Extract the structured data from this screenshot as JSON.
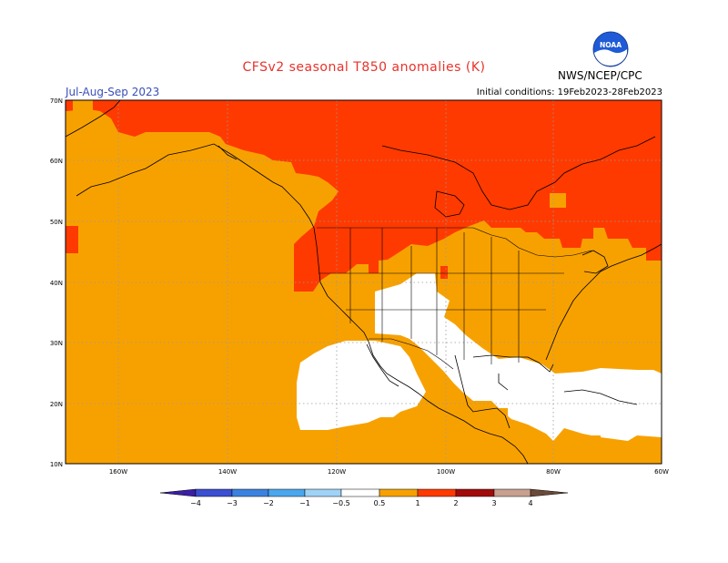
{
  "header": {
    "title": "CFSv2 seasonal T850 anomalies (K)",
    "season": "Jul-Aug-Sep 2023",
    "initial_conditions": "Initial conditions: 19Feb2023-28Feb2023",
    "org": "NWS/NCEP/CPC",
    "logo_text": "NOAA"
  },
  "map": {
    "lat_labels": [
      "70N",
      "60N",
      "50N",
      "40N",
      "30N",
      "20N",
      "10N"
    ],
    "lon_labels": [
      "160W",
      "140W",
      "120W",
      "100W",
      "80W",
      "60W"
    ],
    "colors": {
      "band_05_1": "#f7a100",
      "band_1_2": "#fe3a00",
      "neutral": "#ffffff",
      "coast": "#000000",
      "grid": "#9a9a9a"
    },
    "legend": [
      {
        "label": "−4",
        "color": "#3b1fa6"
      },
      {
        "label": "−3",
        "color": "#3a4fd1"
      },
      {
        "label": "−2",
        "color": "#3b82e0"
      },
      {
        "label": "−1",
        "color": "#4aa6ee"
      },
      {
        "label": "−0.5",
        "color": "#9fd2f7"
      },
      {
        "label": "0.5",
        "color": "#ffffff"
      },
      {
        "label": "1",
        "color": "#f7a100"
      },
      {
        "label": "2",
        "color": "#fe3a00"
      },
      {
        "label": "3",
        "color": "#a20a0a"
      },
      {
        "label": "4",
        "color": "#c8a090"
      },
      {
        "label": "",
        "color": "#6b4a3a"
      }
    ]
  }
}
